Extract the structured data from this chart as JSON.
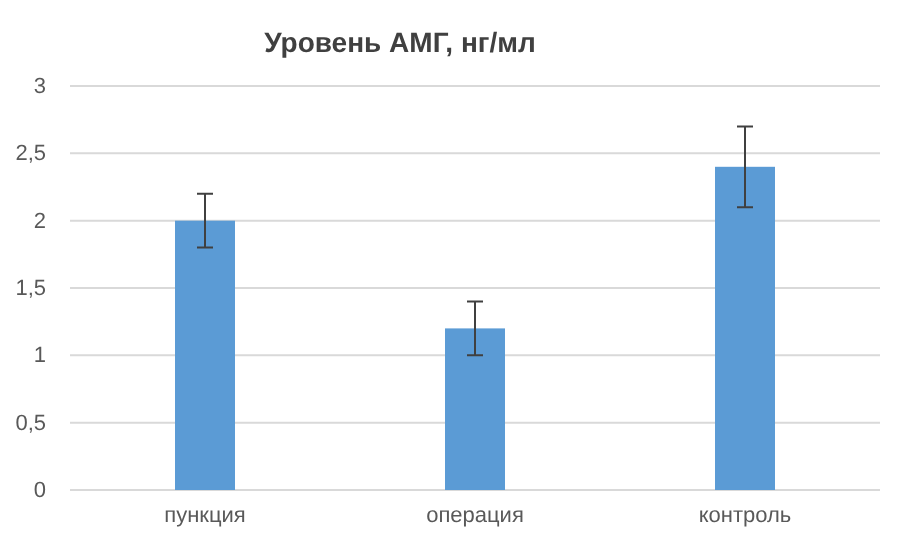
{
  "chart_data": {
    "type": "bar",
    "title": "Уровень АМГ, нг/мл",
    "categories": [
      "пункция",
      "операция",
      "контроль"
    ],
    "values": [
      2,
      1.2,
      2.4
    ],
    "color": "#5b9bd5",
    "errors": [
      0.2,
      0.2,
      0.3
    ],
    "ylim": [
      0,
      3
    ],
    "yticks": [
      0,
      {
        "value": 0.5,
        "label": "0,5"
      },
      1,
      {
        "value": 1.5,
        "label": "1,5"
      },
      2,
      {
        "value": 2.5,
        "label": "2,5"
      },
      3
    ],
    "grid": "y"
  }
}
